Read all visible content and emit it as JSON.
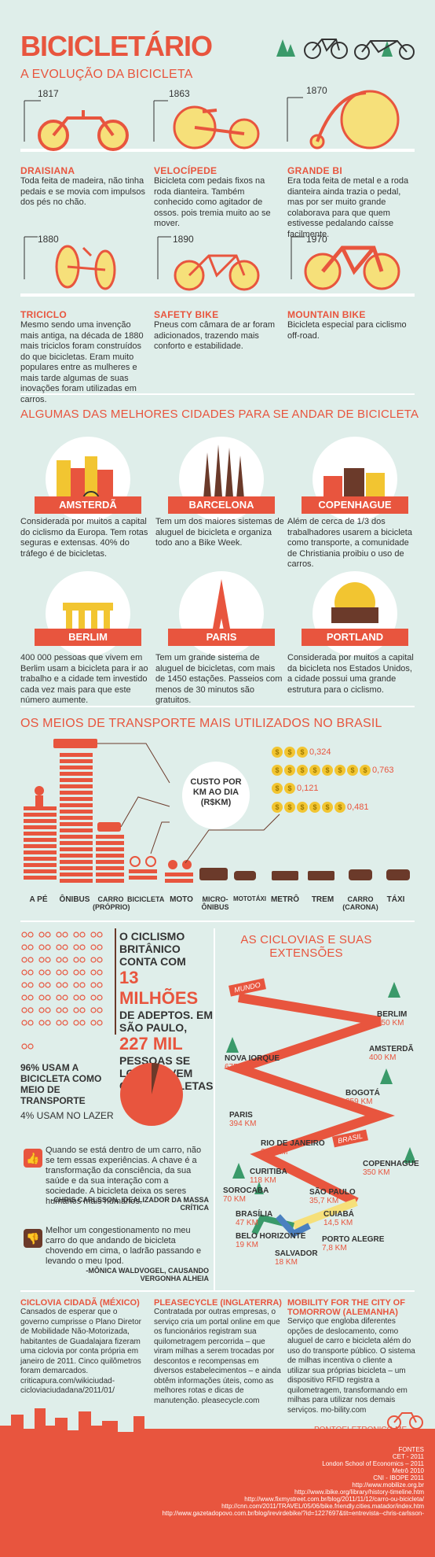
{
  "header": {
    "title": "BICICLETÁRIO"
  },
  "evolution": {
    "title": "A EVOLUÇÃO DA BICICLETA",
    "items": [
      {
        "year": "1817",
        "name": "DRAISIANA",
        "desc": "Toda feita de madeira, não tinha pedais e se movia com impulsos dos pés no chão."
      },
      {
        "year": "1863",
        "name": "VELOCÍPEDE",
        "desc": "Bicicleta com pedais fixos na roda dianteira. Também conhecido como agitador de ossos. pois tremia muito ao se mover."
      },
      {
        "year": "1870",
        "name": "GRANDE BI",
        "desc": "Era toda feita de metal e a roda dianteira ainda trazia o pedal, mas por ser muito grande colaborava para que quem estivesse pedalando caísse facilmente."
      },
      {
        "year": "1880",
        "name": "TRICICLO",
        "desc": "Mesmo sendo uma invenção mais antiga, na década de 1880 mais triciclos foram construídos do que bicicletas. Eram muito populares entre as mulheres e mais tarde algumas de suas inovações foram utilizadas em carros."
      },
      {
        "year": "1890",
        "name": "SAFETY BIKE",
        "desc": "Pneus com câmara de ar foram adicionados, trazendo mais conforto e estabilidade."
      },
      {
        "year": "1970",
        "name": "MOUNTAIN BIKE",
        "desc": "Bicicleta especial para ciclismo off-road."
      }
    ]
  },
  "cities": {
    "title": "ALGUMAS DAS MELHORES CIDADES PARA SE ANDAR DE BICICLETA",
    "items": [
      {
        "name": "AMSTERDÃ",
        "desc": "Considerada por muitos a capital do ciclismo da Europa. Tem rotas seguras e extensas. 40% do tráfego é de bicicletas."
      },
      {
        "name": "BARCELONA",
        "desc": "Tem um dos maiores sistemas de aluguel de bicicleta e organiza todo ano a Bike Week."
      },
      {
        "name": "COPENHAGUE",
        "desc": "Além de cerca de 1/3 dos trabalhadores usarem a bicicleta como transporte, a comunidade de Christiania proibiu o uso de carros."
      },
      {
        "name": "BERLIM",
        "desc": "400 000 pessoas que vivem em Berlim usam a bicicleta para ir ao trabalho e a cidade tem investido cada vez mais para que este número aumente."
      },
      {
        "name": "PARIS",
        "desc": "Tem um grande sistema de aluguel de bicicletas, com mais de 1450 estações. Passeios com menos de 30 minutos são gratuitos."
      },
      {
        "name": "PORTLAND",
        "desc": "Considerada por muitos a capital da bicicleta nos Estados Unidos, a cidade possui uma grande estrutura para o ciclismo."
      }
    ]
  },
  "transport": {
    "title": "OS MEIOS DE TRANSPORTE MAIS UTILIZADOS NO BRASIL",
    "cost_label": "CUSTO POR KM AO DIA (R$KM)",
    "costs": [
      "0,324",
      "0,763",
      "0,121",
      "0,481"
    ],
    "modes": [
      "A PÉ",
      "ÔNIBUS",
      "CARRO (PRÓPRIO)",
      "BICICLETA",
      "MOTO",
      "MICRO-ÔNIBUS",
      "MOTOTÁXI",
      "METRÔ",
      "TREM",
      "CARRO (CARONA)",
      "TÁXI"
    ]
  },
  "uk": {
    "line1": "O CICLISMO BRITÂNICO CONTA COM",
    "num1": "13 MILHÕES",
    "line2": "DE ADEPTOS. EM SÃO PAULO,",
    "num2": "227 MIL",
    "line3": "PESSOAS SE LOCOMOVEM COM BICICLETAS",
    "pct1": "96% USAM A BICICLETA COMO MEIO DE TRANSPORTE",
    "pct2": "4% USAM NO LAZER"
  },
  "quotes": [
    {
      "text": "Quando se está dentro de um carro, não se tem essas experiências. A chave é a transformação da consciência, da sua saúde e da sua interação com a sociedade. A bicicleta deixa os seres humanos mais humanos.",
      "author": "-CHRIS CARLSSON, IDEALIZADOR DA MASSA CRÍTICA"
    },
    {
      "text": "Melhor um congestionamento no meu carro do que andando de bicicleta chovendo em cima, o ladrão passando e levando o meu Ipod.",
      "author": "-MÔNICA WALDVOGEL, CAUSANDO VERGONHA ALHEIA"
    }
  ],
  "lanes": {
    "title": "AS CICLOVIAS E SUAS EXTENSÕES",
    "world": "MUNDO",
    "brasil": "BRASIL",
    "world_items": [
      {
        "name": "BERLIM",
        "km": "750 KM"
      },
      {
        "name": "AMSTERDÃ",
        "km": "400 KM"
      },
      {
        "name": "NOVA IORQUE",
        "km": "675 KM"
      },
      {
        "name": "BOGOTÁ",
        "km": "359 KM"
      },
      {
        "name": "PARIS",
        "km": "394 KM"
      },
      {
        "name": "COPENHAGUE",
        "km": "350 KM"
      }
    ],
    "br_items": [
      {
        "name": "RIO DE JANEIRO",
        "km": "240 KM"
      },
      {
        "name": "CURITIBA",
        "km": "118 KM"
      },
      {
        "name": "SOROCABA",
        "km": "70 KM"
      },
      {
        "name": "SÃO PAULO",
        "km": "35,7 KM"
      },
      {
        "name": "BRASÍLIA",
        "km": "47 KM"
      },
      {
        "name": "CUIABÁ",
        "km": "14,5 KM"
      },
      {
        "name": "BELO HORIZONTE",
        "km": "19 KM"
      },
      {
        "name": "PORTO ALEGRE",
        "km": "7,8 KM"
      },
      {
        "name": "SALVADOR",
        "km": "18 KM"
      }
    ]
  },
  "footer": [
    {
      "title": "CICLOVIA CIDADÃ (MÉXICO)",
      "text": "Cansados de esperar que o governo cumprisse o Plano Diretor de Mobilidade Não-Motorizada, habitantes de Guadalajara fizeram uma ciclovia por conta própria em janeiro de 2011. Cinco quilômetros foram demarcados. criticapura.com/wikiciudad-cicloviaciudadana/2011/01/"
    },
    {
      "title": "PLEASECYCLE (INGLATERRA)",
      "text": "Contratada por outras empresas, o serviço cria um portal online em que os funcionários registram sua quilometragem percorrida – que viram milhas a serem trocadas por descontos e recompensas em diversos estabelecimentos – e ainda obtêm informações úteis, como as melhores rotas e dicas de manutenção. pleasecycle.com"
    },
    {
      "title": "MOBILITY FOR THE CITY OF TOMORROW (ALEMANHA)",
      "text": "Serviço que engloba diferentes opções de deslocamento, como aluguel de carro e bicicleta além do uso do transporte público. O sistema de milhas incentiva o cliente a utilizar sua próprias bicicleta – um dispositivo RFID registra a quilometragem, transformando em milhas para utilizar nos demais serviços. mo-bility.com"
    }
  ],
  "site": "PONTOELETRONICO.ME",
  "sources": {
    "title": "FONTES",
    "lines": [
      "CET - 2011",
      "London School of Economics – 2011",
      "Metrô 2010",
      "CNI - IBOPE 2011",
      "http://www.mobilize.org.br",
      "http://www.ibike.org/library/history-timeline.htm",
      "http://www.fixmystreet.com.br/blog/2011/11/12/carro-ou-bicicleta/",
      "http://cnn.com/2011/TRAVEL/05/06/bike.friendly.cities.matador/index.htm",
      "http://www.gazetadopovo.com.br/blog/irevirdebike/?id=1227697&tit=entrevista--chris-carlsson-"
    ]
  }
}
